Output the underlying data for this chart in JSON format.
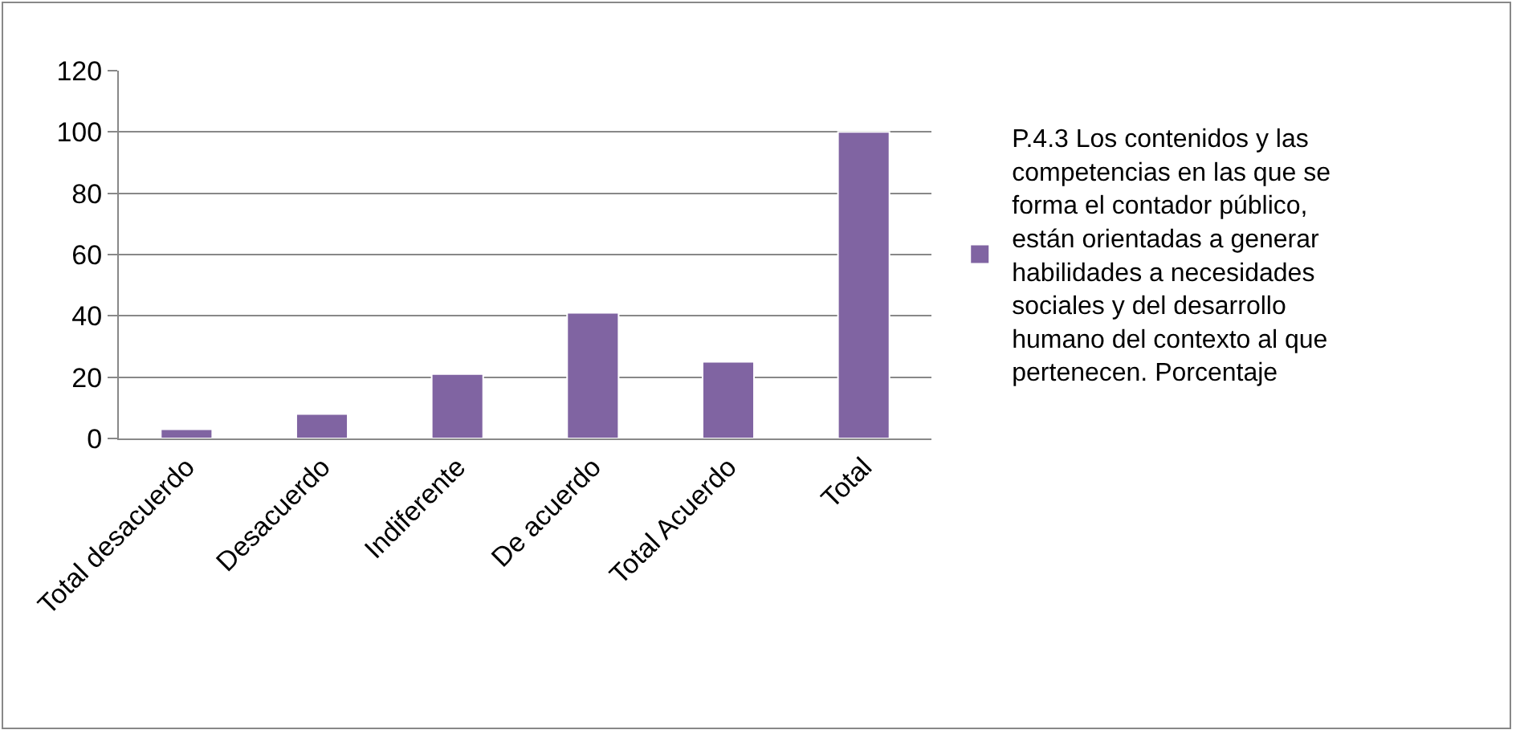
{
  "chart_data": {
    "type": "bar",
    "categories": [
      "Total desacuerdo",
      "Desacuerdo",
      "Indiferente",
      "De acuerdo",
      "Total Acuerdo",
      "Total"
    ],
    "series": [
      {
        "name": "P.4.3 Los contenidos y las competencias en las que se forma el contador público, están orientadas a generar habilidades a necesidades sociales y del desarrollo humano del contexto al que pertenecen. Porcentaje",
        "color": "#8064a2",
        "values": [
          3,
          8,
          21,
          41,
          25,
          100
        ]
      }
    ],
    "ylim": [
      0,
      120
    ],
    "yticks": [
      0,
      20,
      40,
      60,
      80,
      100,
      120
    ],
    "grid": "y",
    "legend": "right"
  }
}
